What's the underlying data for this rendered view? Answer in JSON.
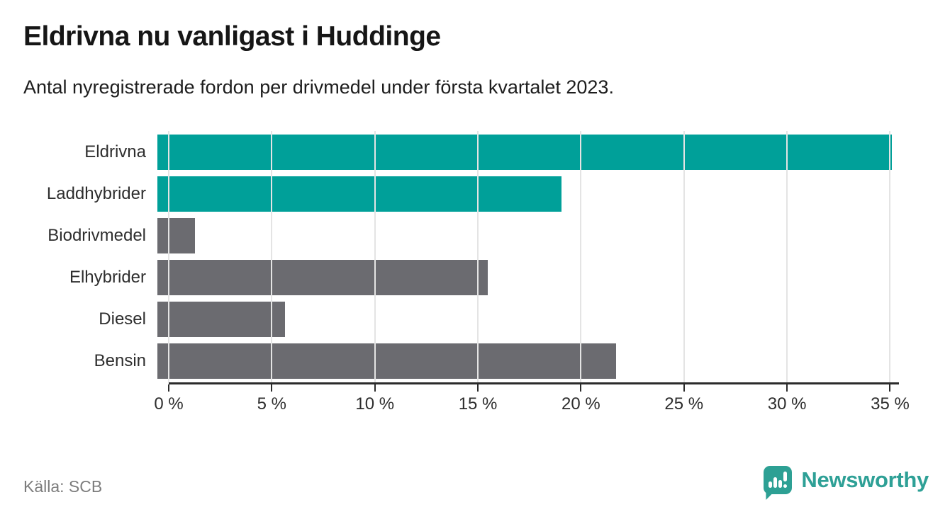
{
  "header": {
    "title": "Eldrivna nu vanligast i Huddinge",
    "subtitle": "Antal nyregistrerade fordon per drivmedel under första kvartalet 2023."
  },
  "chart_data": {
    "type": "bar",
    "orientation": "horizontal",
    "title": "Eldrivna nu vanligast i Huddinge",
    "subtitle": "Antal nyregistrerade fordon per drivmedel under första kvartalet 2023.",
    "categories": [
      "Eldrivna",
      "Laddhybrider",
      "Biodrivmedel",
      "Elhybrider",
      "Diesel",
      "Bensin"
    ],
    "values": [
      35.1,
      19.3,
      1.8,
      15.8,
      6.1,
      21.9
    ],
    "unit": "%",
    "bar_colors": [
      "#00a099",
      "#00a099",
      "#6b6b70",
      "#6b6b70",
      "#6b6b70",
      "#6b6b70"
    ],
    "highlight_color": "#00a099",
    "default_color": "#6b6b70",
    "xlabel": "",
    "ylabel": "",
    "xlim": [
      0,
      35.5
    ],
    "x_ticks": [
      0,
      5,
      10,
      15,
      20,
      25,
      30,
      35
    ],
    "x_tick_labels": [
      "0 %",
      "5 %",
      "10 %",
      "15 %",
      "20 %",
      "25 %",
      "30 %",
      "35 %"
    ],
    "grid": "vertical",
    "legend": "none"
  },
  "footer": {
    "source": "Källa: SCB",
    "brand_name": "Newsworthy",
    "brand_icon": "newsworthy-speech-bubble-chart-icon",
    "brand_color": "#2da096"
  }
}
